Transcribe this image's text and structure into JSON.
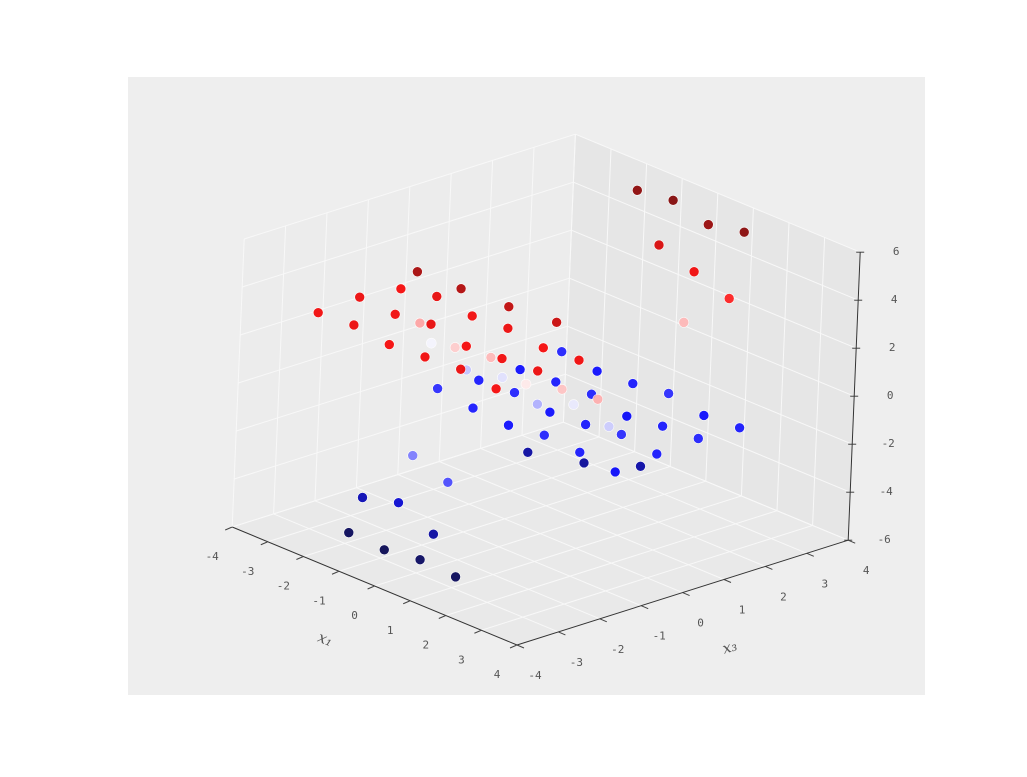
{
  "chart_data": {
    "type": "scatter3d",
    "xlabel": "x₁",
    "ylabel": "x₃",
    "colormap": "seismic",
    "x": [
      -3,
      -2,
      -1,
      0,
      1,
      2,
      -3,
      -2,
      -1,
      0,
      1,
      2,
      -3,
      -2,
      -1,
      0,
      1,
      2,
      -2,
      -1,
      0,
      1,
      -3,
      -2,
      -1,
      0,
      1,
      2,
      -3,
      -2,
      -1,
      0,
      1,
      2,
      -3,
      -2,
      -1,
      0,
      1,
      2,
      -3,
      -2,
      -1,
      0,
      1,
      2,
      -3,
      -2,
      -1,
      0,
      1,
      2,
      -3,
      -2,
      -1,
      0,
      1,
      2,
      -1,
      0,
      1,
      -1,
      0,
      1,
      2,
      -1,
      0,
      1,
      0,
      1,
      -2,
      -1,
      0,
      1,
      -1,
      0,
      1,
      0
    ],
    "y": [
      -3,
      -3,
      -3,
      -3,
      -3,
      -3,
      -2,
      -2,
      -2,
      -2,
      -2,
      -2,
      -1,
      -1,
      -1,
      -1,
      -1,
      -1,
      -1.5,
      -1.3,
      -1,
      -0.7,
      -0.5,
      -0.5,
      -0.5,
      -0.5,
      -0.5,
      -0.5,
      -0.2,
      -0.2,
      -0.2,
      -0.2,
      -0.2,
      -0.2,
      0,
      0,
      0,
      0,
      0,
      0,
      1,
      1,
      1,
      1,
      1,
      1,
      2,
      2,
      2,
      2,
      2,
      2,
      3,
      3,
      3,
      3,
      3,
      3,
      0.5,
      1,
      1.5,
      -3.8,
      -3.8,
      -3.8,
      -3.8,
      -3.5,
      -3.5,
      -3.5,
      -3.2,
      -3.2,
      3.8,
      3.8,
      3.8,
      3.8,
      3.5,
      3.5,
      3.5,
      3.3
    ],
    "z": [
      3.0,
      3.1,
      2.9,
      3.0,
      3.1,
      2.9,
      3.1,
      3.0,
      3.2,
      2.9,
      3.0,
      3.1,
      2.9,
      3.2,
      3.0,
      3.1,
      2.9,
      3.0,
      4.5,
      4.3,
      4.0,
      3.8,
      1.2,
      0.8,
      1.0,
      0.5,
      0.9,
      1.1,
      0.2,
      -0.3,
      0,
      -0.5,
      0.1,
      -0.2,
      -1.8,
      -2.0,
      -2.1,
      -1.9,
      -2.0,
      -2.2,
      -2.0,
      -1.9,
      -2.1,
      -2.0,
      -1.8,
      -2.0,
      -2.1,
      -2.0,
      -1.9,
      -2.2,
      -2.0,
      -1.9,
      -1.9,
      -2.1,
      -2.0,
      -1.8,
      -2.1,
      -2.0,
      -3.5,
      -3.6,
      -3.4,
      -4.5,
      -4.6,
      -4.4,
      -4.5,
      -3.2,
      -2.8,
      -3.5,
      -1.0,
      -1.5,
      5.0,
      5.2,
      4.8,
      5.1,
      3.5,
      3.0,
      2.5,
      1.0
    ],
    "xlim": [
      -4,
      4
    ],
    "ylim": [
      -4,
      4
    ],
    "zlim": [
      -6,
      6
    ],
    "xticks": [
      -4,
      -3,
      -2,
      -1,
      0,
      1,
      2,
      3,
      4
    ],
    "yticks": [
      -4,
      -3,
      -2,
      -1,
      0,
      1,
      2,
      3,
      4
    ],
    "zticks": [
      -6,
      -4,
      -2,
      0,
      2,
      4,
      6
    ],
    "grid": true
  }
}
